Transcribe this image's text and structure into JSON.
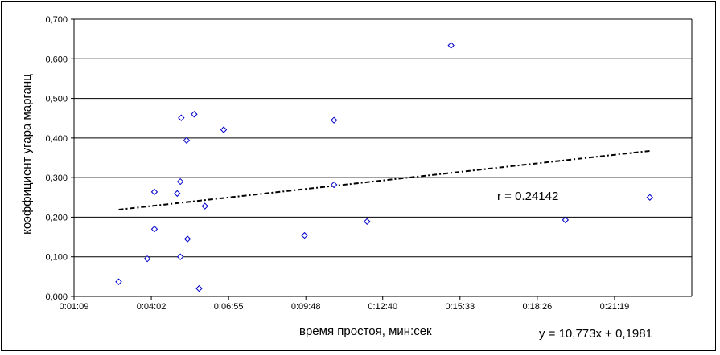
{
  "chart_data": {
    "type": "scatter",
    "xlabel": "время простоя, мин:сек",
    "ylabel": "коэффициент угара марганц",
    "x_ticks": [
      "0:01:09",
      "0:04:02",
      "0:06:55",
      "0:09:48",
      "0:12:40",
      "0:15:33",
      "0:18:26",
      "0:21:19"
    ],
    "x_tick_seconds": [
      69,
      242,
      415,
      588,
      760,
      933,
      1106,
      1279
    ],
    "xlim_seconds": [
      69,
      1452
    ],
    "y_ticks": [
      "0,000",
      "0,100",
      "0,200",
      "0,300",
      "0,400",
      "0,500",
      "0,600",
      "0,700"
    ],
    "ylim": [
      0,
      0.7
    ],
    "grid": "horizontal",
    "points": [
      {
        "x": "0:02:49",
        "y": 0.037
      },
      {
        "x": "0:03:53",
        "y": 0.095
      },
      {
        "x": "0:04:09",
        "y": 0.264
      },
      {
        "x": "0:04:09",
        "y": 0.17
      },
      {
        "x": "0:05:00",
        "y": 0.26
      },
      {
        "x": "0:05:07",
        "y": 0.29
      },
      {
        "x": "0:05:07",
        "y": 0.1
      },
      {
        "x": "0:05:09",
        "y": 0.451
      },
      {
        "x": "0:05:21",
        "y": 0.394
      },
      {
        "x": "0:05:23",
        "y": 0.145
      },
      {
        "x": "0:05:38",
        "y": 0.46
      },
      {
        "x": "0:05:49",
        "y": 0.02
      },
      {
        "x": "0:06:02",
        "y": 0.228
      },
      {
        "x": "0:06:44",
        "y": 0.421
      },
      {
        "x": "0:09:45",
        "y": 0.154
      },
      {
        "x": "0:10:51",
        "y": 0.445
      },
      {
        "x": "0:10:51",
        "y": 0.282
      },
      {
        "x": "0:12:05",
        "y": 0.189
      },
      {
        "x": "0:15:13",
        "y": 0.634
      },
      {
        "x": "0:19:29",
        "y": 0.193
      },
      {
        "x": "0:22:38",
        "y": 0.25
      }
    ],
    "trendline": {
      "x_start": "0:02:49",
      "x_end": "0:22:38",
      "slope_per_day": 10.773,
      "intercept": 0.1981
    },
    "annotations": {
      "r": "r = 0.24142",
      "equation": "y = 10,773x + 0,1981"
    },
    "colors": {
      "point": "#0000cc",
      "grid": "#000000",
      "trend": "#000000"
    }
  }
}
